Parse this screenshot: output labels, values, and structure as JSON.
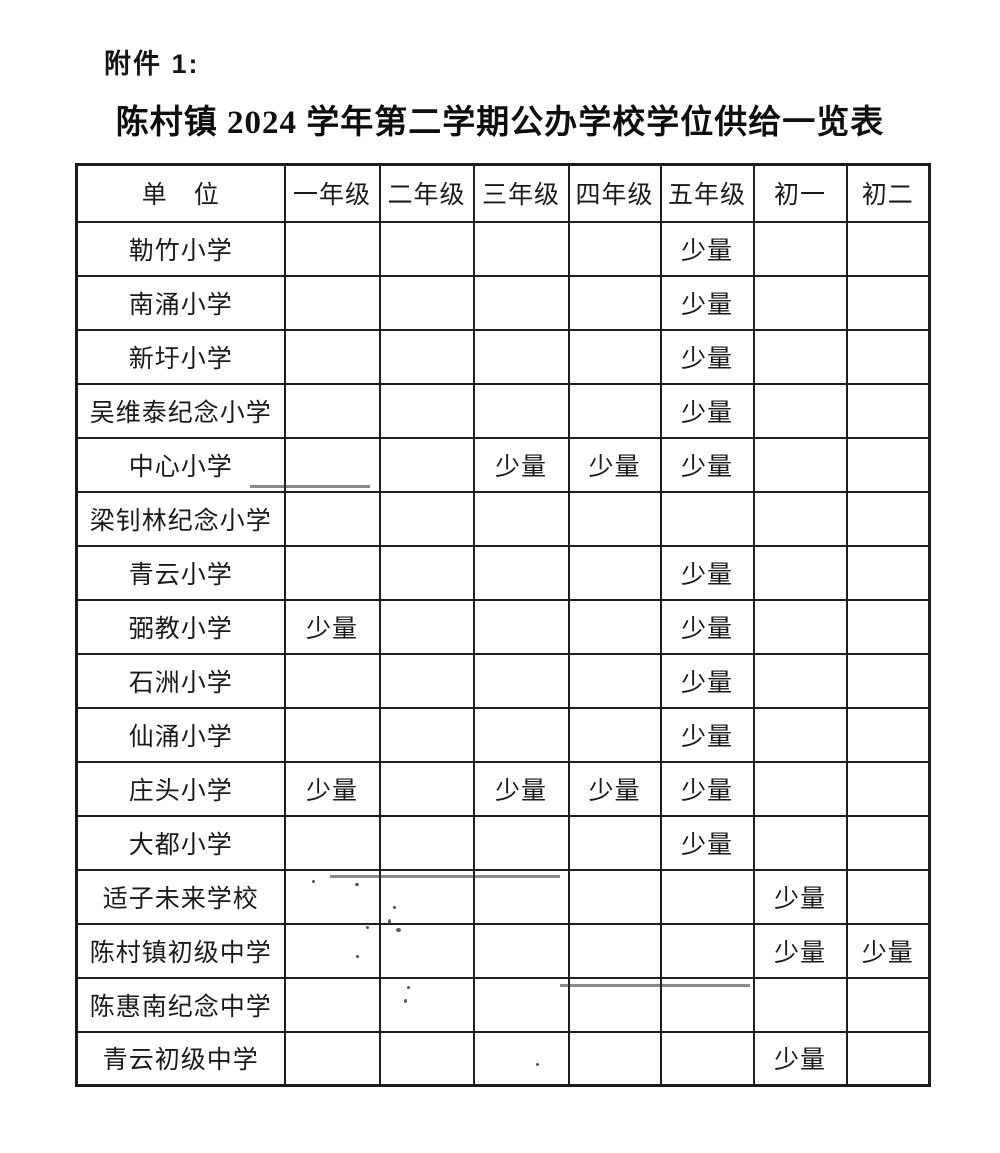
{
  "document": {
    "attachment_label": "附件 1:",
    "title": "陈村镇 2024 学年第二学期公办学校学位供给一览表"
  },
  "table": {
    "columns": [
      "单　位",
      "一年级",
      "二年级",
      "三年级",
      "四年级",
      "五年级",
      "初一",
      "初二"
    ],
    "supply_label": "少量",
    "rows": [
      {
        "school": "勒竹小学",
        "cells": [
          "",
          "",
          "",
          "",
          "少量",
          "",
          ""
        ]
      },
      {
        "school": "南涌小学",
        "cells": [
          "",
          "",
          "",
          "",
          "少量",
          "",
          ""
        ]
      },
      {
        "school": "新圩小学",
        "cells": [
          "",
          "",
          "",
          "",
          "少量",
          "",
          ""
        ]
      },
      {
        "school": "吴维泰纪念小学",
        "cells": [
          "",
          "",
          "",
          "",
          "少量",
          "",
          ""
        ]
      },
      {
        "school": "中心小学",
        "cells": [
          "",
          "",
          "少量",
          "少量",
          "少量",
          "",
          ""
        ]
      },
      {
        "school": "梁钊林纪念小学",
        "cells": [
          "",
          "",
          "",
          "",
          "",
          "",
          ""
        ]
      },
      {
        "school": "青云小学",
        "cells": [
          "",
          "",
          "",
          "",
          "少量",
          "",
          ""
        ]
      },
      {
        "school": "弼教小学",
        "cells": [
          "少量",
          "",
          "",
          "",
          "少量",
          "",
          ""
        ]
      },
      {
        "school": "石洲小学",
        "cells": [
          "",
          "",
          "",
          "",
          "少量",
          "",
          ""
        ]
      },
      {
        "school": "仙涌小学",
        "cells": [
          "",
          "",
          "",
          "",
          "少量",
          "",
          ""
        ]
      },
      {
        "school": "庄头小学",
        "cells": [
          "少量",
          "",
          "少量",
          "少量",
          "少量",
          "",
          ""
        ]
      },
      {
        "school": "大都小学",
        "cells": [
          "",
          "",
          "",
          "",
          "少量",
          "",
          ""
        ]
      },
      {
        "school": "适子未来学校",
        "cells": [
          "",
          "",
          "",
          "",
          "",
          "少量",
          ""
        ]
      },
      {
        "school": "陈村镇初级中学",
        "cells": [
          "",
          "",
          "",
          "",
          "",
          "少量",
          "少量"
        ]
      },
      {
        "school": "陈惠南纪念中学",
        "cells": [
          "",
          "",
          "",
          "",
          "",
          "",
          ""
        ]
      },
      {
        "school": "青云初级中学",
        "cells": [
          "",
          "",
          "",
          "",
          "",
          "少量",
          ""
        ]
      }
    ]
  }
}
